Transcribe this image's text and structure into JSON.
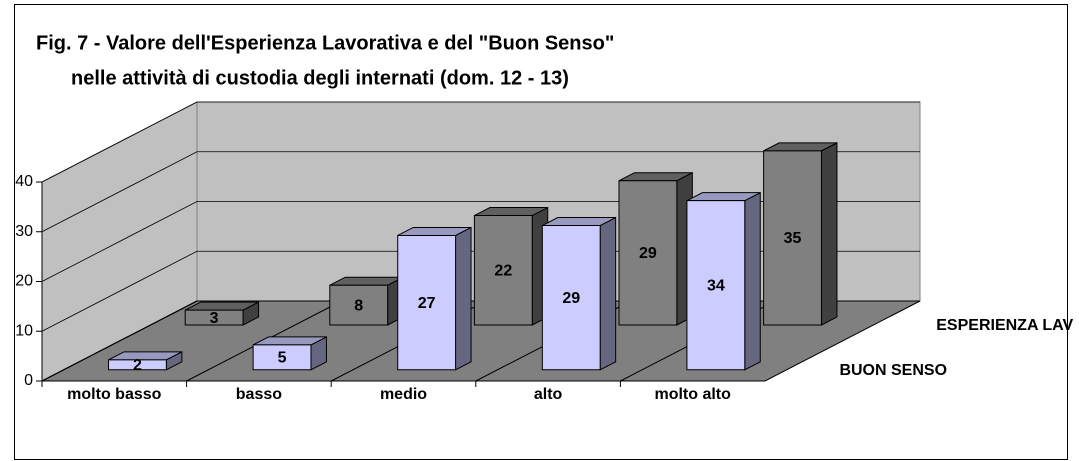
{
  "chart_data": {
    "type": "bar3d",
    "title": "Fig. 7 - Valore dell'Esperienza Lavorativa e del \"Buon Senso\"",
    "subtitle": "nelle attività di custodia degli internati (dom. 12 - 13)",
    "categories": [
      "molto basso",
      "basso",
      "medio",
      "alto",
      "molto alto"
    ],
    "series": [
      {
        "name": "BUON SENSO",
        "color": "#ccccff",
        "values": [
          2,
          5,
          27,
          29,
          34
        ]
      },
      {
        "name": "ESPERIENZA LAV",
        "color": "#808080",
        "values": [
          3,
          8,
          22,
          29,
          35
        ]
      }
    ],
    "ylim": [
      0,
      40
    ],
    "yticks": [
      0,
      10,
      20,
      30,
      40
    ],
    "grid": true
  }
}
